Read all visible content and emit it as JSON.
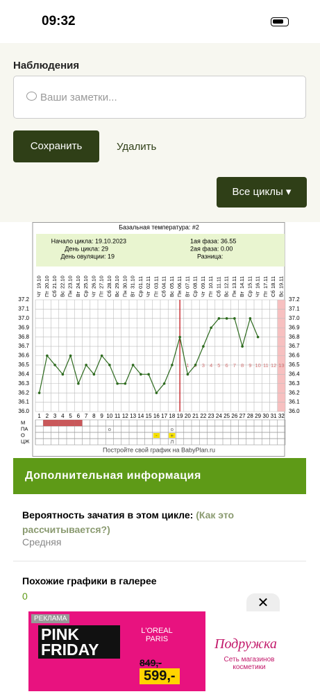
{
  "status_bar": {
    "time": "09:32"
  },
  "notes": {
    "title": "Наблюдения",
    "placeholder": "Ваши заметки...",
    "save": "Сохранить",
    "delete": "Удалить",
    "all_cycles": "Все циклы"
  },
  "chart_data": {
    "type": "line",
    "title": "Базальная температура: #2",
    "info": [
      "Начало цикла: 19.10.2023",
      "День цикла: 29",
      "День овуляции: 19",
      "1ая фаза: 36.55",
      "2ая фаза: 0.00",
      "Разница:"
    ],
    "categories": [
      1,
      2,
      3,
      4,
      5,
      6,
      7,
      8,
      9,
      10,
      11,
      12,
      13,
      14,
      15,
      16,
      17,
      18,
      19,
      20,
      21,
      22,
      23,
      24,
      25,
      26,
      27,
      28,
      29,
      30,
      31,
      32
    ],
    "weekdays": [
      "Чт",
      "Пт",
      "Сб",
      "Вс",
      "Пн",
      "Вт",
      "Ср",
      "Чт",
      "Пт",
      "Сб",
      "Вс",
      "Пн",
      "Вт",
      "Ср",
      "Чт",
      "Пт",
      "Сб",
      "Вс",
      "Пн",
      "Вт",
      "Ср",
      "Чт",
      "Пт",
      "Сб",
      "Вс",
      "Пн",
      "Вт",
      "Ср",
      "Чт",
      "Пт",
      "Сб",
      "Вс"
    ],
    "dates": [
      "19.10",
      "20.10",
      "21.10",
      "22.10",
      "23.10",
      "24.10",
      "25.10",
      "26.10",
      "27.10",
      "28.10",
      "29.10",
      "30.10",
      "31.10",
      "01.11",
      "02.11",
      "03.11",
      "04.11",
      "05.11",
      "06.11",
      "07.11",
      "08.11",
      "09.11",
      "10.11",
      "11.11",
      "12.11",
      "13.11",
      "14.11",
      "15.11",
      "16.11",
      "17.11",
      "18.11",
      "19.11"
    ],
    "values": [
      36.2,
      36.6,
      36.5,
      36.4,
      36.6,
      36.3,
      36.5,
      36.4,
      36.6,
      36.5,
      36.3,
      36.3,
      36.5,
      36.4,
      36.4,
      36.2,
      36.3,
      36.5,
      36.8,
      36.4,
      36.5,
      36.7,
      36.9,
      37.0,
      37.0,
      37.0,
      36.7,
      37.0,
      36.8,
      null,
      null,
      null
    ],
    "color": "#2d6a1e",
    "ovulation_day": 19,
    "luteal_days": [
      1,
      2,
      3,
      4,
      5,
      6,
      7,
      8,
      9,
      10,
      11,
      12,
      13
    ],
    "ylim": [
      36.0,
      37.2
    ],
    "yticks": [
      {
        "value": 36.0,
        "label": "36.0"
      },
      36.1,
      36.2,
      36.3,
      36.4,
      36.5,
      36.6,
      36.7,
      36.8,
      36.9,
      {
        "value": 37.0,
        "label": "37.0"
      },
      37.1,
      37.2
    ],
    "grid": true,
    "row_labels": [
      "М",
      "ПА",
      "О",
      "ЦЖ"
    ],
    "m_days": [
      2,
      3,
      4,
      5,
      6
    ],
    "pa_marks": [
      {
        "day": 10,
        "label": "о"
      },
      {
        "day": 18,
        "label": "о"
      }
    ],
    "o_marks": [
      {
        "day": 16,
        "label": "-"
      },
      {
        "day": 18,
        "label": "+"
      }
    ],
    "czh_marks": [
      {
        "day": 18,
        "label": "Л"
      }
    ],
    "footer": "Постройте свой график на BabyPlan.ru"
  },
  "info": {
    "header": "Дополнительная информация",
    "probability_label": "Вероятность зачатия в этом цикле:",
    "probability_link": "(Как это рассчитывается?)",
    "probability_value": "Средняя",
    "gallery_label": "Похожие графики в галерее",
    "gallery_value": "0"
  },
  "ad": {
    "tag": "РЕКЛАМА",
    "promo": "PINK FRIDAY",
    "brand": "L'OREAL PARIS",
    "old_price": "849,-",
    "new_price": "599,-",
    "shop": "Подружка",
    "shop_sub": "Сеть магазинов косметики"
  }
}
